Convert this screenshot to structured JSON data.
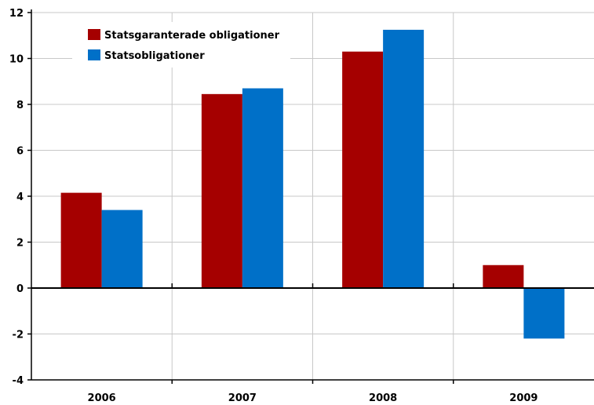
{
  "chart_data": {
    "type": "bar",
    "categories": [
      "2006",
      "2007",
      "2008",
      "2009"
    ],
    "series": [
      {
        "name": "Statsgaranterade obligationer",
        "color": "#a50000",
        "values": [
          4.15,
          8.45,
          10.3,
          1.0
        ]
      },
      {
        "name": "Statsobligationer",
        "color": "#0070c8",
        "values": [
          3.4,
          8.7,
          11.25,
          -2.2
        ]
      }
    ],
    "title": "",
    "xlabel": "",
    "ylabel": "",
    "ylim": [
      -4,
      12
    ],
    "yticks": [
      "12",
      "10",
      "8",
      "6",
      "4",
      "2",
      "0",
      "-2",
      "-4"
    ],
    "grid": true,
    "legend_position": "top-left"
  }
}
